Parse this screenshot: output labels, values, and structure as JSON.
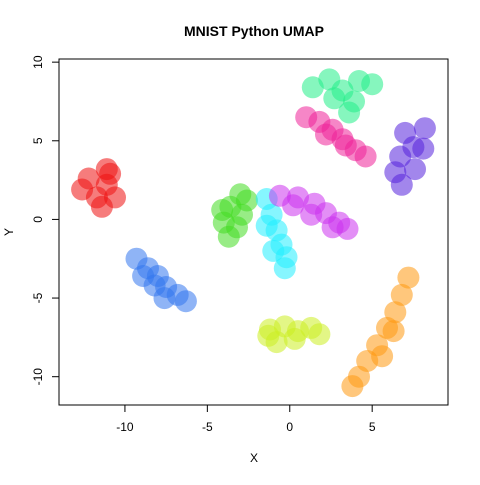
{
  "chart_data": {
    "type": "scatter",
    "title": "MNIST Python UMAP",
    "xlabel": "X",
    "ylabel": "Y",
    "xlim": [
      -14,
      9.6
    ],
    "ylim": [
      -11.8,
      10.2
    ],
    "xticks": [
      -10,
      -5,
      0,
      5
    ],
    "yticks": [
      -10,
      -5,
      0,
      5,
      10
    ],
    "grid": false,
    "legend": "none",
    "clusters": [
      {
        "color": "#ee1111",
        "points": [
          [
            -11.1,
            2.2
          ],
          [
            -12.2,
            2.6
          ],
          [
            -11.7,
            1.4
          ],
          [
            -10.9,
            2.9
          ],
          [
            -10.6,
            1.4
          ],
          [
            -12.6,
            1.9
          ],
          [
            -11.4,
            0.8
          ],
          [
            -11.1,
            3.2
          ]
        ]
      },
      {
        "color": "#3377ee",
        "points": [
          [
            -9.3,
            -2.5
          ],
          [
            -8.6,
            -3.1
          ],
          [
            -8.0,
            -3.6
          ],
          [
            -7.5,
            -4.3
          ],
          [
            -6.8,
            -4.8
          ],
          [
            -6.3,
            -5.2
          ],
          [
            -7.6,
            -5.0
          ],
          [
            -8.2,
            -4.2
          ],
          [
            -8.9,
            -3.6
          ]
        ]
      },
      {
        "color": "#44dd22",
        "points": [
          [
            -3.6,
            0.8
          ],
          [
            -4.0,
            -0.2
          ],
          [
            -3.0,
            1.6
          ],
          [
            -2.6,
            1.2
          ],
          [
            -3.2,
            -0.5
          ],
          [
            -4.1,
            0.6
          ],
          [
            -3.7,
            -1.1
          ],
          [
            -2.9,
            0.3
          ]
        ]
      },
      {
        "color": "#22eeff",
        "points": [
          [
            -1.4,
            1.3
          ],
          [
            -1.1,
            0.3
          ],
          [
            -0.8,
            -0.7
          ],
          [
            -0.5,
            -1.6
          ],
          [
            -0.2,
            -2.4
          ],
          [
            -0.3,
            -3.1
          ],
          [
            -1.0,
            -2.0
          ],
          [
            -1.4,
            -0.4
          ]
        ]
      },
      {
        "color": "#cc33ee",
        "points": [
          [
            -0.6,
            1.5
          ],
          [
            0.5,
            1.4
          ],
          [
            1.5,
            1.0
          ],
          [
            2.2,
            0.4
          ],
          [
            3.0,
            -0.2
          ],
          [
            3.5,
            -0.6
          ],
          [
            2.6,
            -0.5
          ],
          [
            1.3,
            0.3
          ],
          [
            0.2,
            0.9
          ]
        ]
      },
      {
        "color": "#22ee88",
        "points": [
          [
            1.4,
            8.4
          ],
          [
            2.4,
            8.9
          ],
          [
            3.2,
            8.2
          ],
          [
            4.2,
            8.8
          ],
          [
            5.0,
            8.6
          ],
          [
            3.9,
            7.5
          ],
          [
            3.6,
            6.8
          ],
          [
            2.7,
            7.7
          ]
        ]
      },
      {
        "color": "#ee2299",
        "points": [
          [
            1.0,
            6.5
          ],
          [
            1.8,
            6.2
          ],
          [
            2.6,
            5.7
          ],
          [
            3.2,
            5.1
          ],
          [
            4.0,
            4.4
          ],
          [
            4.6,
            4.0
          ],
          [
            3.4,
            4.7
          ],
          [
            2.2,
            5.4
          ]
        ]
      },
      {
        "color": "#5522dd",
        "points": [
          [
            7.0,
            5.5
          ],
          [
            8.2,
            5.8
          ],
          [
            7.5,
            4.6
          ],
          [
            6.7,
            4.0
          ],
          [
            6.4,
            3.0
          ],
          [
            6.8,
            2.2
          ],
          [
            7.6,
            3.2
          ],
          [
            8.1,
            4.5
          ]
        ]
      },
      {
        "color": "#ccee22",
        "points": [
          [
            -1.2,
            -7.0
          ],
          [
            -0.3,
            -6.8
          ],
          [
            0.5,
            -7.1
          ],
          [
            1.3,
            -6.9
          ],
          [
            1.8,
            -7.3
          ],
          [
            0.3,
            -7.6
          ],
          [
            -0.8,
            -7.8
          ],
          [
            -1.3,
            -7.4
          ]
        ]
      },
      {
        "color": "#ff9911",
        "points": [
          [
            7.2,
            -3.7
          ],
          [
            6.8,
            -4.8
          ],
          [
            6.4,
            -5.9
          ],
          [
            5.9,
            -6.9
          ],
          [
            5.3,
            -8.0
          ],
          [
            4.7,
            -9.0
          ],
          [
            4.2,
            -10.0
          ],
          [
            3.8,
            -10.6
          ],
          [
            5.6,
            -8.7
          ],
          [
            6.3,
            -7.1
          ]
        ]
      }
    ]
  }
}
